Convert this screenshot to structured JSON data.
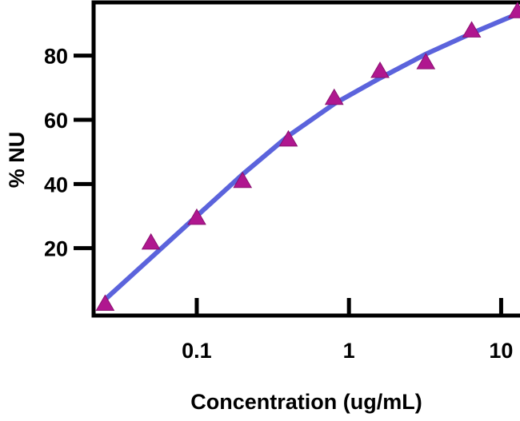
{
  "chart_data": {
    "type": "scatter",
    "title": "",
    "xlabel": "Concentration (ug/mL)",
    "ylabel": "% NU",
    "x_scale": "log",
    "xlim": [
      0.021,
      13.3
    ],
    "ylim": [
      -1,
      96.6
    ],
    "x_ticks": [
      0.1,
      1,
      10
    ],
    "x_tick_labels": [
      "0.1",
      "1",
      "10"
    ],
    "y_ticks": [
      20,
      40,
      60,
      80
    ],
    "y_tick_labels": [
      "20",
      "40",
      "60",
      "80"
    ],
    "grid": false,
    "legend": "none",
    "series": [
      {
        "kind": "points",
        "marker": "triangle",
        "color": "#b0178f",
        "x": [
          0.025,
          0.05,
          0.1,
          0.2,
          0.4,
          0.8,
          1.6,
          3.2,
          6.4,
          12.8
        ],
        "y": [
          2.6,
          21.7,
          29.4,
          40.9,
          53.8,
          66.8,
          75.2,
          77.9,
          87.8,
          93.8
        ]
      },
      {
        "kind": "fit-line",
        "color": "#5b63dc",
        "x": [
          0.025,
          0.05,
          0.1,
          0.2,
          0.4,
          0.8,
          1.6,
          3.2,
          6.4,
          12.8
        ],
        "y": [
          4,
          17,
          30,
          43,
          55,
          65,
          73,
          80.5,
          87,
          93
        ]
      }
    ]
  }
}
